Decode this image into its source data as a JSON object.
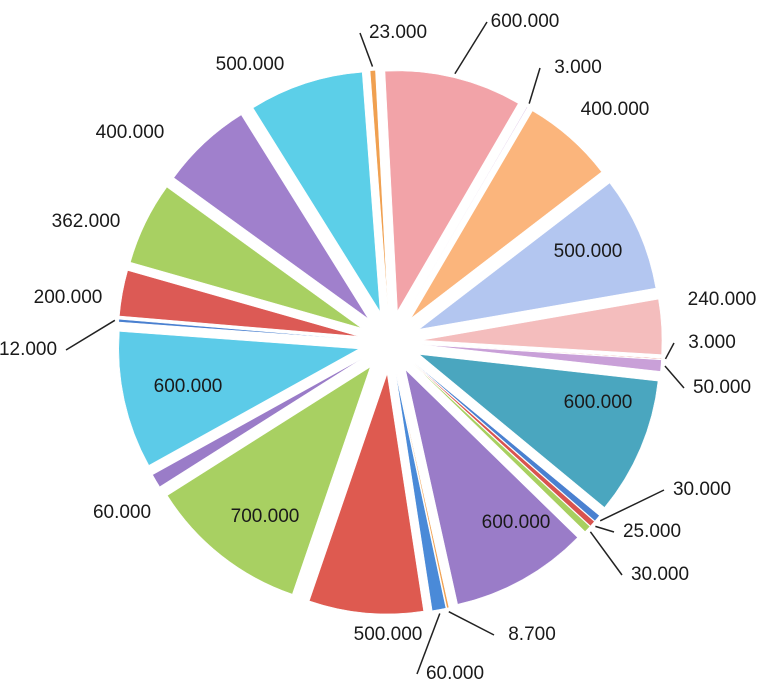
{
  "chart_data": {
    "type": "pie",
    "categories": [
      null,
      null,
      null,
      null,
      null,
      null,
      null,
      null,
      null,
      null,
      null,
      null,
      null,
      null,
      null,
      null,
      null,
      null,
      null,
      null,
      null,
      null,
      null,
      null
    ],
    "values": [
      600000,
      3000,
      400000,
      500000,
      240000,
      3000,
      50000,
      600000,
      30000,
      25000,
      30000,
      600000,
      8700,
      60000,
      500000,
      700000,
      60000,
      600000,
      12000,
      200000,
      362000,
      400000,
      500000,
      23000
    ],
    "value_labels": [
      "600.000",
      "3.000",
      "400.000",
      "500.000",
      "240.000",
      "3.000",
      "50.000",
      "600.000",
      "30.000",
      "25.000",
      "30.000",
      "600.000",
      "8.700",
      "60.000",
      "500.000",
      "700.000",
      "60.000",
      "600.000",
      "12.000",
      "200.000",
      "362.000",
      "400.000",
      "500.000",
      "23.000"
    ],
    "colors": [
      "#f2a3a8",
      "#c9a0d8",
      "#fbb57c",
      "#b3c6f0",
      "#f4bdbd",
      "#d9534f",
      "#c9a0d8",
      "#4aa6bf",
      "#4a80d0",
      "#d9534f",
      "#a8d060",
      "#9a7cc8",
      "#f0a050",
      "#4a8ad8",
      "#de5a50",
      "#a8d062",
      "#9a7cc8",
      "#5ccbe8",
      "#4a80d0",
      "#dc5a55",
      "#a8d062",
      "#a080cc",
      "#5ccfe8",
      "#f0a050"
    ]
  }
}
